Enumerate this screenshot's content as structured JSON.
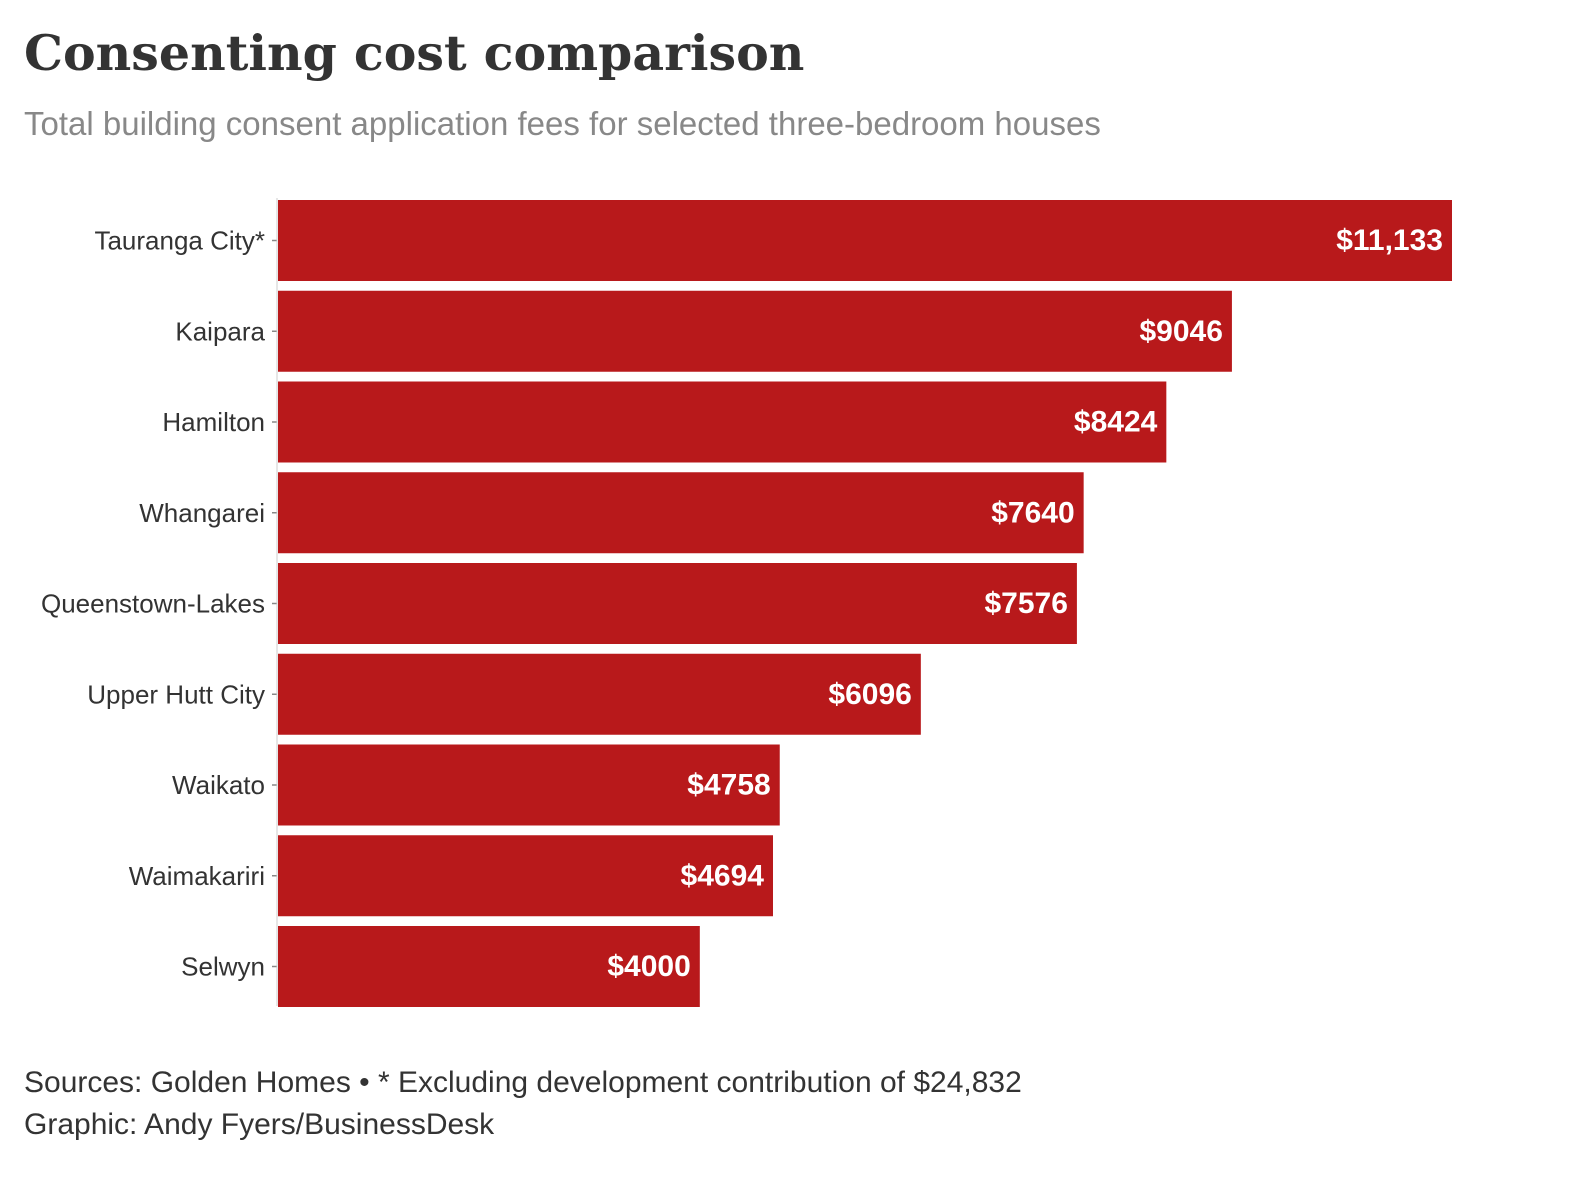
{
  "title": "Consenting cost comparison",
  "subtitle": "Total building consent application fees for selected three-bedroom houses",
  "footer": {
    "sources": "Sources: Golden Homes • * Excluding development contribution of $24,832",
    "credit": "Graphic: Andy Fyers/BusinessDesk"
  },
  "colors": {
    "bar": "#b8191b",
    "value_text": "#ffffff",
    "label_text": "#333333",
    "title_text": "#333333",
    "subtitle_text": "#888888"
  },
  "chart_data": {
    "type": "bar",
    "orientation": "horizontal",
    "title": "Consenting cost comparison",
    "subtitle": "Total building consent application fees for selected three-bedroom houses",
    "xlabel": "",
    "ylabel": "",
    "xlim": [
      0,
      11133
    ],
    "grid": false,
    "legend": "none",
    "categories": [
      "Tauranga City*",
      "Kaipara",
      "Hamilton",
      "Whangarei",
      "Queenstown-Lakes",
      "Upper Hutt City",
      "Waikato",
      "Waimakariri",
      "Selwyn"
    ],
    "values": [
      11133,
      9046,
      8424,
      7640,
      7576,
      6096,
      4758,
      4694,
      4000
    ],
    "value_labels": [
      "$11,133",
      "$9046",
      "$8424",
      "$7640",
      "$7576",
      "$6096",
      "$4758",
      "$4694",
      "$4000"
    ]
  }
}
